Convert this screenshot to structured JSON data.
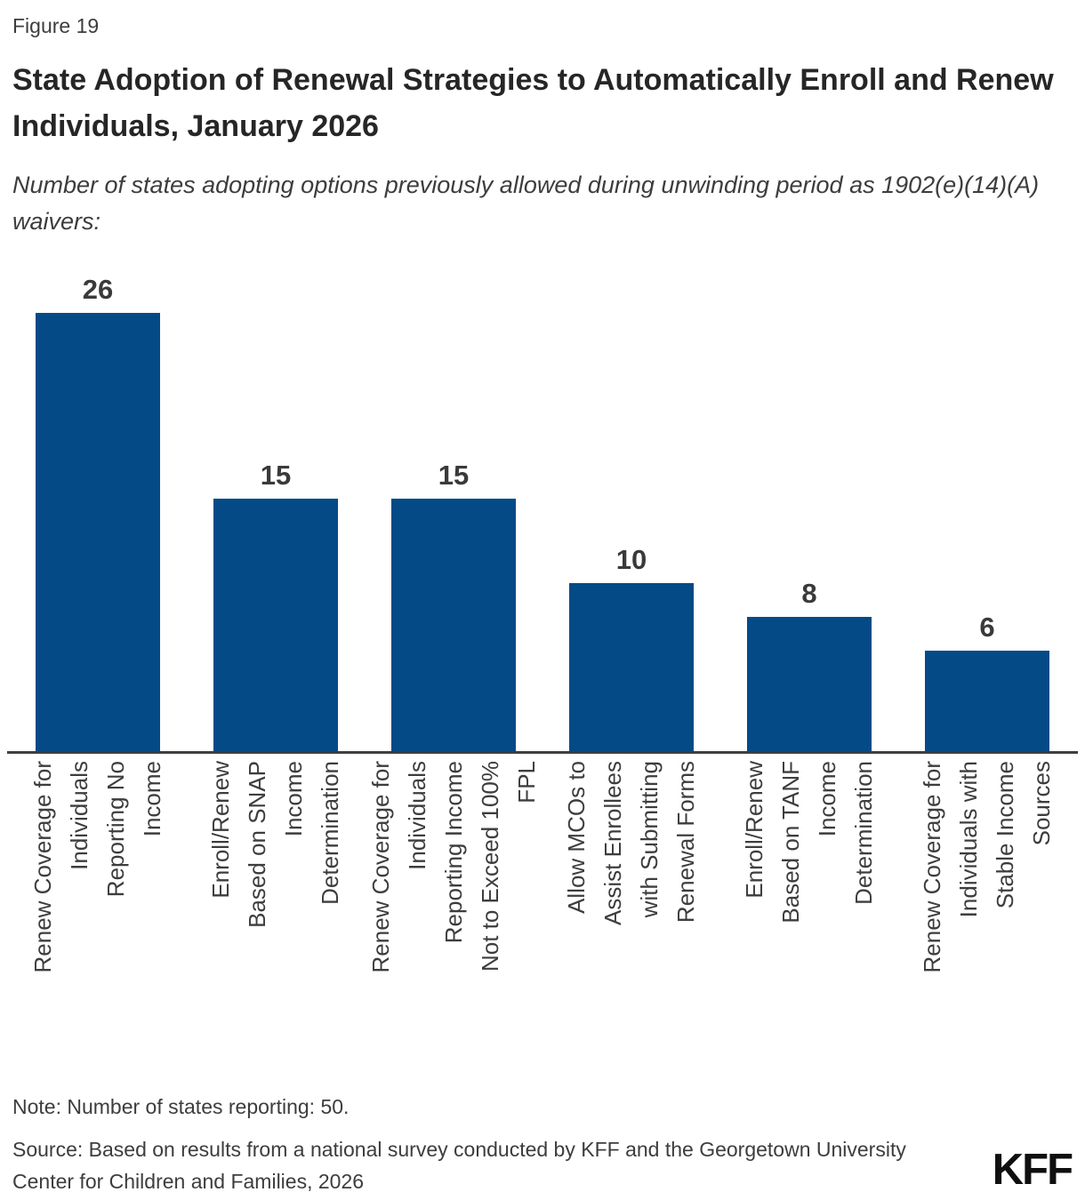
{
  "figure_label": "Figure 19",
  "title": "State Adoption of Renewal Strategies to Automatically Enroll and Renew Individuals, January 2026",
  "subtitle": "Number of states adopting options previously allowed during unwinding period as 1902(e)(14)(A) waivers:",
  "note": "Note: Number of states reporting: 50.",
  "source": "Source: Based on results from a national survey conducted by KFF and the Georgetown University Center for Children and Families, 2026",
  "logo": "KFF",
  "colors": {
    "bar": "#034a87",
    "axis": "#3f3f3f",
    "title_text": "#262626",
    "body_text": "#3d3d3d",
    "value_label_text": "#3a3a3a",
    "background": "#ffffff"
  },
  "chart_data": {
    "type": "bar",
    "title": "State Adoption of Renewal Strategies to Automatically Enroll and Renew Individuals, January 2026",
    "subtitle": "Number of states adopting options previously allowed during unwinding period as 1902(e)(14)(A) waivers:",
    "categories": [
      "Renew Coverage for\nIndividuals\nReporting No\nIncome",
      "Enroll/Renew\nBased on SNAP\nIncome\nDetermination",
      "Renew Coverage for\nIndividuals\nReporting Income\nNot to Exceed 100%\nFPL",
      "Allow MCOs to\nAssist Enrollees\nwith Submitting\nRenewal Forms",
      "Enroll/Renew\nBased on TANF\nIncome\nDetermination",
      "Renew Coverage for\nIndividuals with\nStable Income\nSources"
    ],
    "values": [
      26,
      15,
      15,
      10,
      8,
      6
    ],
    "xlabel": "",
    "ylabel": "",
    "ylim": [
      0,
      27.5
    ],
    "grid": false,
    "legend": null,
    "value_labels_shown": true,
    "bar_color": "#034a87",
    "x_tick_label_rotation_degrees": 90
  }
}
